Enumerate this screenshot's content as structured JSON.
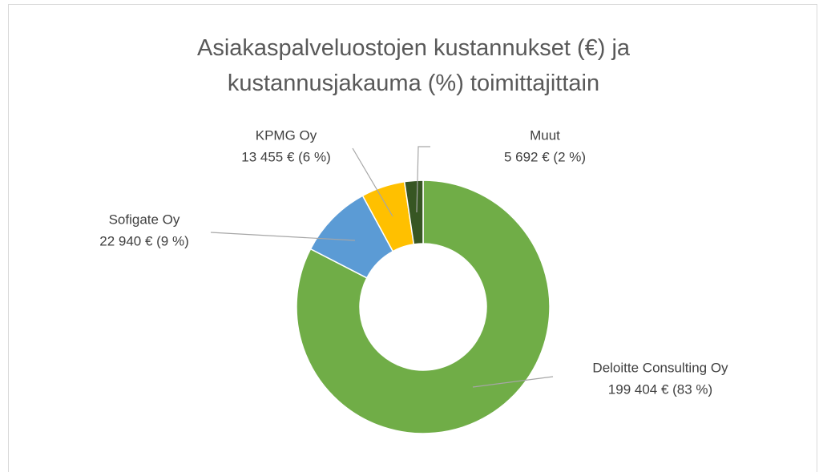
{
  "chart_data": {
    "type": "donut",
    "title": "Asiakaspalveluostojen kustannukset (€) ja kustannusjakauma (%) toimittajittain",
    "categories": [
      "Deloitte Consulting Oy",
      "Sofigate Oy",
      "KPMG Oy",
      "Muut"
    ],
    "values": [
      199404,
      22940,
      13455,
      5692
    ],
    "value_labels": [
      "199 404 € (83 %)",
      "22 940 € (9 %)",
      "13 455 € (6 %)",
      "5 692 € (2 %)"
    ],
    "colors": [
      "#70ad47",
      "#5b9bd5",
      "#ffc000",
      "#375623"
    ]
  }
}
